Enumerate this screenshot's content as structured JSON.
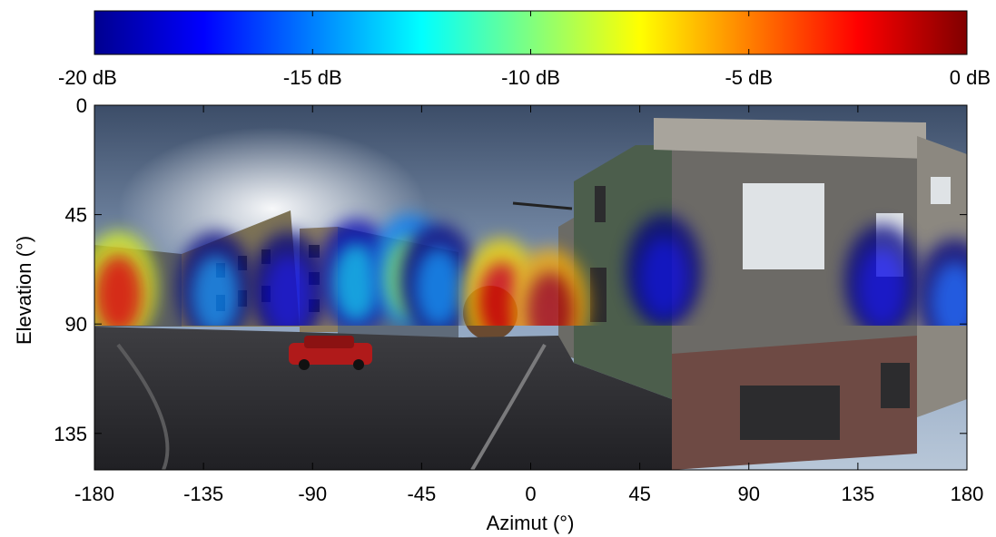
{
  "chart_data": {
    "type": "heatmap",
    "description_overlay": "acoustic energy map over equirectangular street panorama",
    "title": "",
    "colorbar": {
      "colormap": "jet",
      "range_db": [
        -20,
        0
      ],
      "ticks": [
        -20,
        -15,
        -10,
        -5,
        0
      ],
      "tick_labels": [
        "-20 dB",
        "-15 dB",
        "-10 dB",
        "-5 dB",
        "0 dB"
      ],
      "placement": "top"
    },
    "xlabel": "Azimut (°)",
    "ylabel": "Elevation (°)",
    "xlim": [
      -180,
      180
    ],
    "ylim": [
      0,
      150
    ],
    "y_reversed": true,
    "x_ticks": [
      -180,
      -135,
      -90,
      -45,
      0,
      45,
      90,
      135,
      180
    ],
    "x_tick_labels": [
      "-180",
      "-135",
      "-90",
      "-45",
      "0",
      "45",
      "90",
      "135",
      "180"
    ],
    "y_ticks": [
      0,
      45,
      90,
      135
    ],
    "y_tick_labels": [
      "0",
      "45",
      "90",
      "135"
    ],
    "grid": false,
    "overlay_blobs": [
      {
        "azimuth": -170,
        "elevation": 75,
        "level_db": -3
      },
      {
        "azimuth": -130,
        "elevation": 75,
        "level_db": -15
      },
      {
        "azimuth": -100,
        "elevation": 75,
        "level_db": -18
      },
      {
        "azimuth": -72,
        "elevation": 70,
        "level_db": -14
      },
      {
        "azimuth": -50,
        "elevation": 68,
        "level_db": -10
      },
      {
        "azimuth": -38,
        "elevation": 72,
        "level_db": -15
      },
      {
        "azimuth": -12,
        "elevation": 78,
        "level_db": -2
      },
      {
        "azimuth": 8,
        "elevation": 82,
        "level_db": -1
      },
      {
        "azimuth": 55,
        "elevation": 68,
        "level_db": -18
      },
      {
        "azimuth": 145,
        "elevation": 72,
        "level_db": -18
      },
      {
        "azimuth": 175,
        "elevation": 78,
        "level_db": -16
      }
    ]
  }
}
